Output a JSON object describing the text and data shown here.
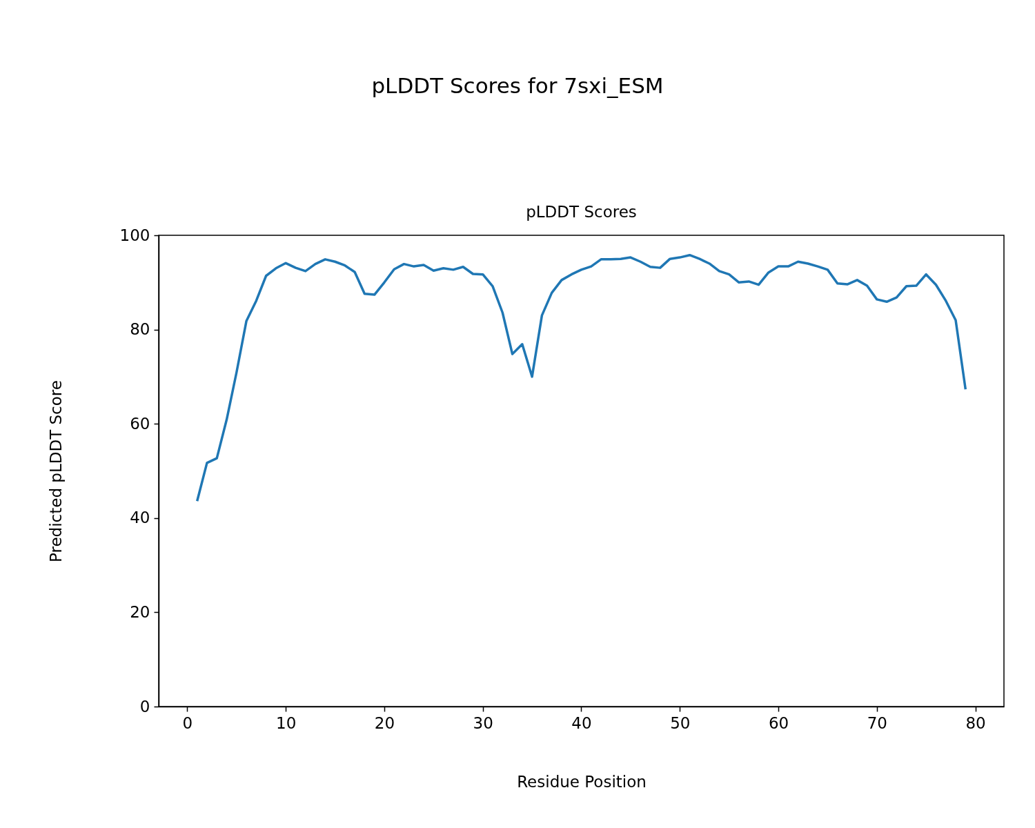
{
  "chart_data": {
    "type": "line",
    "title": "pLDDT Scores for 7sxi_ESM",
    "subtitle": "pLDDT Scores",
    "xlabel": "Residue Position",
    "ylabel": "Predicted pLDDT Score",
    "x": [
      1,
      2,
      3,
      4,
      5,
      6,
      7,
      8,
      9,
      10,
      11,
      12,
      13,
      14,
      15,
      16,
      17,
      18,
      19,
      20,
      21,
      22,
      23,
      24,
      25,
      26,
      27,
      28,
      29,
      30,
      31,
      32,
      33,
      34,
      35,
      36,
      37,
      38,
      39,
      40,
      41,
      42,
      43,
      44,
      45,
      46,
      47,
      48,
      49,
      50,
      51,
      52,
      53,
      54,
      55,
      56,
      57,
      58,
      59,
      60,
      61,
      62,
      63,
      64,
      65,
      66,
      67,
      68,
      69,
      70,
      71,
      72,
      73,
      74,
      75,
      76,
      77,
      78,
      79
    ],
    "series": [
      {
        "color": "#1f77b4",
        "values": [
          43.6,
          51.7,
          52.7,
          60.9,
          70.9,
          81.8,
          86.1,
          91.4,
          93.0,
          94.1,
          93.1,
          92.4,
          93.9,
          94.9,
          94.4,
          93.6,
          92.2,
          87.6,
          87.4,
          90.0,
          92.8,
          93.9,
          93.4,
          93.7,
          92.5,
          93.0,
          92.7,
          93.3,
          91.8,
          91.7,
          89.2,
          83.6,
          74.8,
          76.9,
          70.0,
          83.0,
          87.8,
          90.5,
          91.7,
          92.7,
          93.4,
          94.9,
          94.9,
          95.0,
          95.3,
          94.4,
          93.3,
          93.1,
          95.0,
          95.3,
          95.8,
          95.0,
          94.0,
          92.4,
          91.7,
          90.0,
          90.2,
          89.5,
          92.1,
          93.4,
          93.4,
          94.4,
          94.0,
          93.4,
          92.7,
          89.8,
          89.6,
          90.5,
          89.3,
          86.4,
          85.9,
          86.8,
          89.2,
          89.3,
          91.7,
          89.5,
          86.1,
          82.0,
          67.3
        ]
      }
    ],
    "xlim": [
      -2.9,
      82.9
    ],
    "xticks": [
      0,
      10,
      20,
      30,
      40,
      50,
      60,
      70,
      80
    ],
    "ylim": [
      0,
      100
    ],
    "yticks": [
      0,
      20,
      40,
      60,
      80,
      100
    ],
    "grid": false,
    "line_style": "solid",
    "marker": "none"
  }
}
